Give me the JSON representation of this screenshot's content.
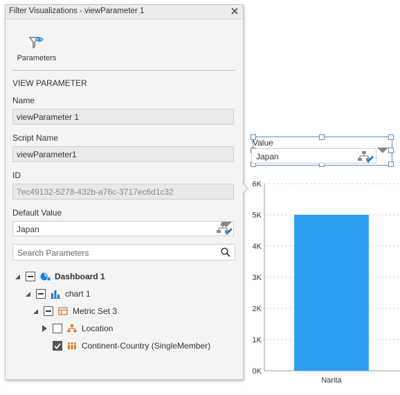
{
  "dialog": {
    "title": "Filter Visualizations - viewParameter 1",
    "toolbar": {
      "parameters_label": "Parameters"
    },
    "section_heading": "VIEW PARAMETER",
    "name": {
      "label": "Name",
      "value": "viewParameter 1"
    },
    "script_name": {
      "label": "Script Name",
      "value": "viewParameter1"
    },
    "id": {
      "label": "ID",
      "value": "7ec49132-5278-432b-a76c-3717ec6d1c32"
    },
    "default_value": {
      "label": "Default Value",
      "value": "Japan"
    },
    "search": {
      "placeholder": "Search Parameters"
    },
    "tree": [
      {
        "label": "Dashboard 1",
        "state": "partial",
        "expanded": true,
        "icon": "dashboard-icon"
      },
      {
        "label": "chart 1",
        "state": "partial",
        "expanded": true,
        "icon": "bar-chart-icon"
      },
      {
        "label": "Metric Set 3",
        "state": "partial",
        "expanded": true,
        "icon": "metric-set-icon"
      },
      {
        "label": "Location",
        "state": "unchecked",
        "expanded": false,
        "icon": "hierarchy-icon"
      },
      {
        "label": "Continent-Country (SingleMember)",
        "state": "checked",
        "expanded": null,
        "icon": "columns-icon"
      }
    ]
  },
  "view_parameter": {
    "label": "Value",
    "value": "Japan"
  },
  "colors": {
    "bar": "#2d9ff0",
    "accent": "#1a7fd1",
    "selection": "#5a8fc5"
  },
  "chart_data": {
    "type": "bar",
    "categories": [
      "Narita"
    ],
    "values": [
      5000
    ],
    "ylim": [
      0,
      6000
    ],
    "yticks": [
      "0K",
      "1K",
      "2K",
      "3K",
      "4K",
      "5K",
      "6K"
    ],
    "grid": true,
    "title": "",
    "xlabel": "",
    "ylabel": ""
  }
}
